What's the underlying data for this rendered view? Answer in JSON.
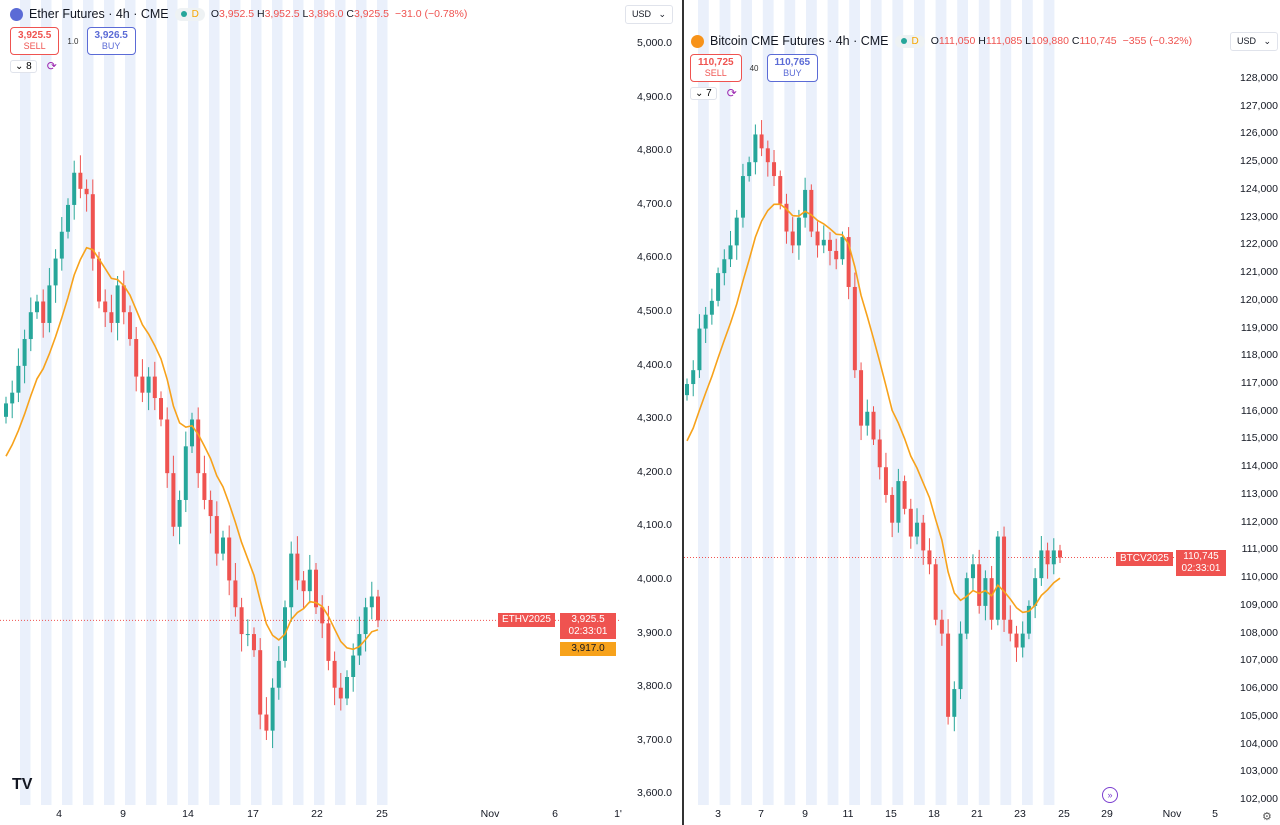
{
  "left": {
    "symbol": "Ether Futures · 4h · CME",
    "interval_badge": "D",
    "open": "3,952.5",
    "high": "3,952.5",
    "low": "3,896.0",
    "close": "3,925.5",
    "change": "−31.0 (−0.78%)",
    "sell_price": "3,925.5",
    "sell_label": "SELL",
    "spread": "1.0",
    "buy_price": "3,926.5",
    "buy_label": "BUY",
    "indicator_count": "8",
    "currency": "USD",
    "price_ticker": "ETHV2025",
    "last_price": "3,925.5",
    "countdown": "02:33:01",
    "ma_value": "3,917.0",
    "y_ticks": [
      "5,000.0",
      "4,900.0",
      "4,800.0",
      "4,700.0",
      "4,600.0",
      "4,500.0",
      "4,400.0",
      "4,300.0",
      "4,200.0",
      "4,100.0",
      "4,000.0",
      "3,900.0",
      "3,800.0",
      "3,700.0",
      "3,600.0"
    ],
    "x_ticks": [
      "4",
      "9",
      "14",
      "17",
      "22",
      "25",
      "Nov",
      "6",
      "1'"
    ],
    "logo_color": "#5b6bd6",
    "closes": [
      4330,
      4350,
      4400,
      4450,
      4500,
      4520,
      4480,
      4550,
      4600,
      4650,
      4700,
      4760,
      4730,
      4720,
      4600,
      4520,
      4500,
      4480,
      4550,
      4500,
      4450,
      4380,
      4350,
      4380,
      4340,
      4300,
      4200,
      4100,
      4150,
      4250,
      4300,
      4200,
      4150,
      4120,
      4050,
      4080,
      4000,
      3950,
      3900,
      3900,
      3870,
      3750,
      3720,
      3800,
      3850,
      3950,
      4050,
      4000,
      3980,
      4020,
      3950,
      3920,
      3850,
      3800,
      3780,
      3820,
      3860,
      3900,
      3950,
      3970,
      3925.5
    ]
  },
  "right": {
    "symbol": "Bitcoin CME Futures · 4h · CME",
    "interval_badge": "D",
    "open": "111,050",
    "high": "111,085",
    "low": "109,880",
    "close": "110,745",
    "change": "−355 (−0.32%)",
    "sell_price": "110,725",
    "sell_label": "SELL",
    "spread": "40",
    "buy_price": "110,765",
    "buy_label": "BUY",
    "indicator_count": "7",
    "currency": "USD",
    "price_ticker": "BTCV2025",
    "last_price": "110,745",
    "countdown": "02:33:01",
    "y_ticks": [
      "128,000",
      "127,000",
      "126,000",
      "125,000",
      "124,000",
      "123,000",
      "122,000",
      "121,000",
      "120,000",
      "119,000",
      "118,000",
      "117,000",
      "116,000",
      "115,000",
      "114,000",
      "113,000",
      "112,000",
      "111,000",
      "110,000",
      "109,000",
      "108,000",
      "107,000",
      "106,000",
      "105,000",
      "104,000",
      "103,000",
      "102,000"
    ],
    "x_ticks": [
      "3",
      "7",
      "9",
      "11",
      "15",
      "18",
      "21",
      "23",
      "25",
      "29",
      "Nov",
      "5"
    ],
    "logo_color": "#f7931a",
    "closes": [
      117000,
      117500,
      119000,
      119500,
      120000,
      121000,
      121500,
      122000,
      123000,
      124500,
      125000,
      126000,
      125500,
      125000,
      124500,
      123500,
      122500,
      122000,
      123000,
      124000,
      122500,
      122000,
      122200,
      121800,
      121500,
      122300,
      120500,
      117500,
      115500,
      116000,
      115000,
      114000,
      113000,
      112000,
      113500,
      112500,
      111500,
      112000,
      111000,
      110500,
      108500,
      108000,
      105000,
      106000,
      108000,
      110000,
      110500,
      109000,
      110000,
      108500,
      111500,
      108500,
      108000,
      107500,
      108000,
      109000,
      110000,
      111000,
      110500,
      111000,
      110745
    ]
  },
  "colors": {
    "up": "#26a69a",
    "down": "#ef5350",
    "ma": "#f7a21b",
    "band": "#eaf0fb"
  }
}
